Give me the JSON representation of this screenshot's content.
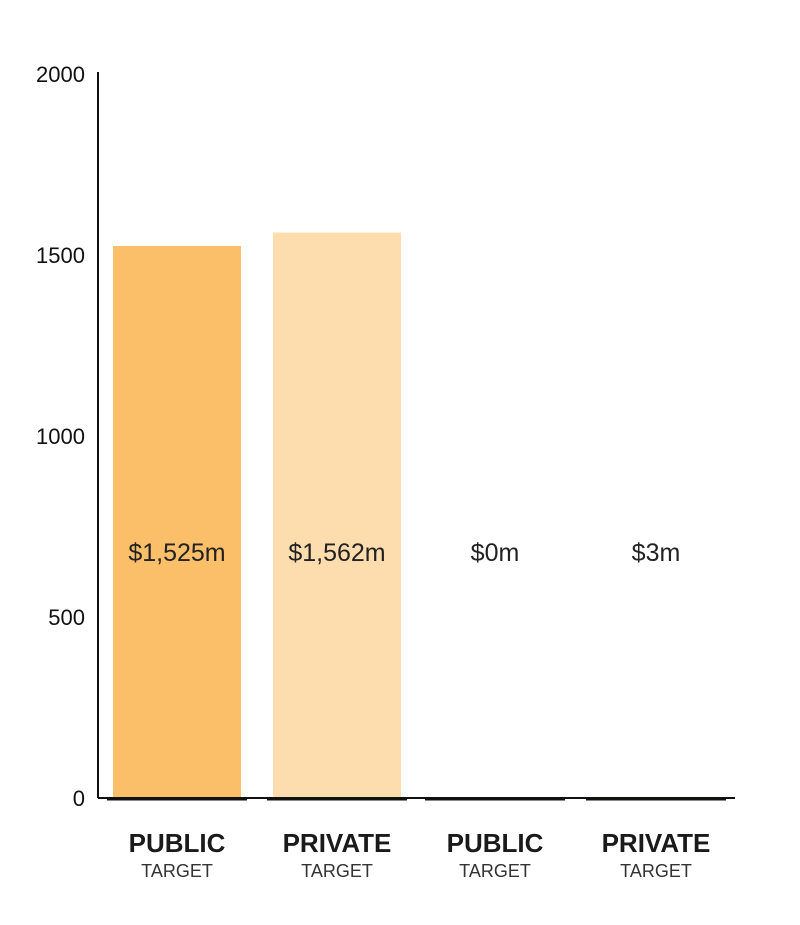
{
  "chart_data": {
    "type": "bar",
    "title": "",
    "xlabel": "",
    "ylabel": "",
    "ylim": [
      0,
      2000
    ],
    "yticks": [
      "0",
      "500",
      "1000",
      "1500",
      "2000"
    ],
    "grid": false,
    "legend": "none",
    "categories": [
      {
        "main": "PUBLIC",
        "sub": "TARGET"
      },
      {
        "main": "PRIVATE",
        "sub": "TARGET"
      },
      {
        "main": "PUBLIC",
        "sub": "TARGET"
      },
      {
        "main": "PRIVATE",
        "sub": "TARGET"
      }
    ],
    "values": [
      1525,
      1562,
      0,
      3
    ],
    "data_labels": [
      "$1,525m",
      "$1,562m",
      "$0m",
      "$3m"
    ],
    "colors": [
      "#fbbf6a",
      "#fddcad",
      "#fddcad",
      "#fddcad"
    ],
    "axis_color": "#111111"
  }
}
